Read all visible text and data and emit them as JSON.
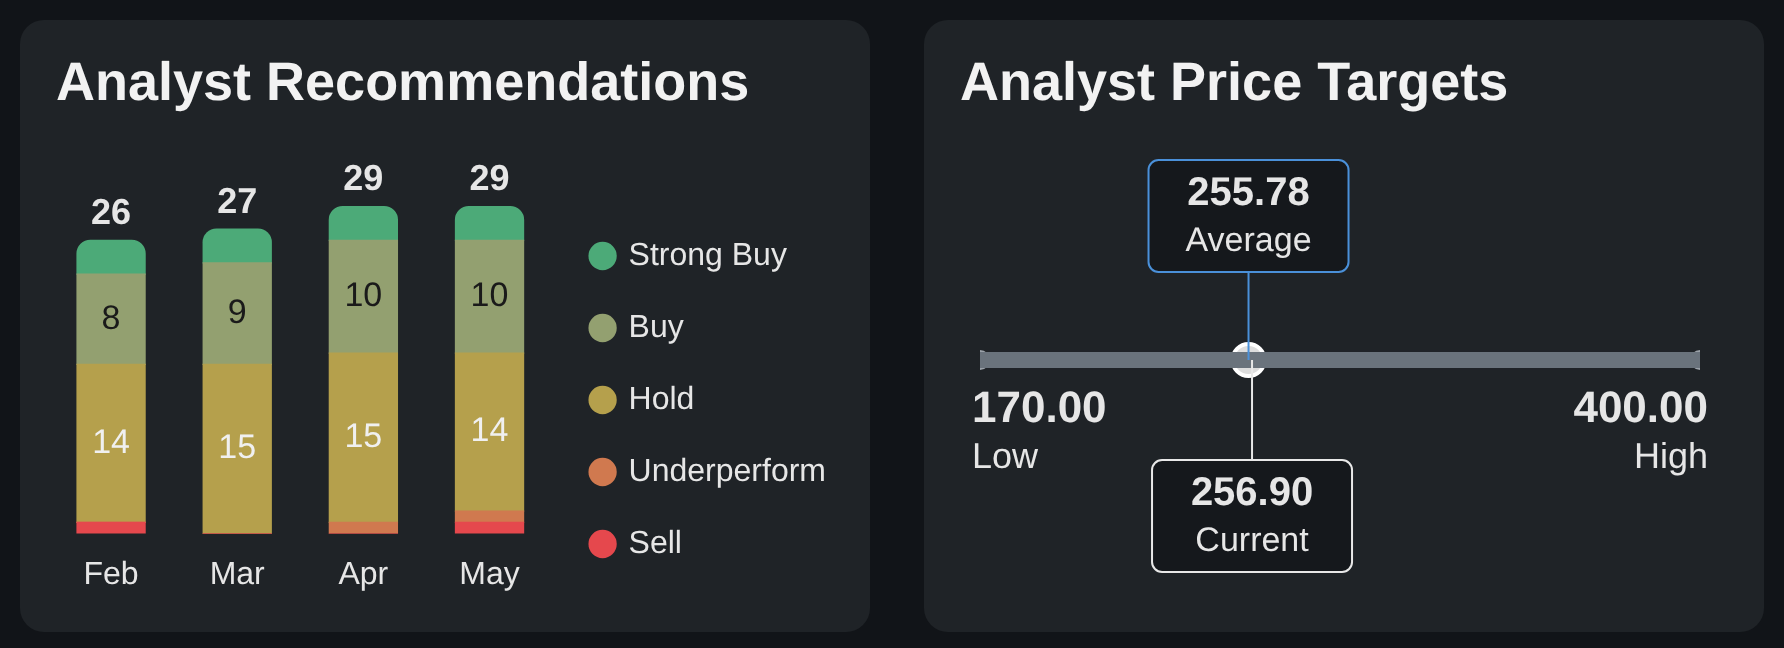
{
  "chart_data": [
    {
      "type": "bar",
      "title": "Analyst Recommendations",
      "categories": [
        "Feb",
        "Mar",
        "Apr",
        "May"
      ],
      "stacked": true,
      "legend": "right",
      "totals": [
        "26",
        "27",
        "29",
        "29"
      ],
      "series": [
        {
          "name": "Sell",
          "color": "#e5484d",
          "values": [
            1,
            0,
            0,
            1
          ],
          "value_labels": [
            null,
            null,
            null,
            null
          ]
        },
        {
          "name": "Underperform",
          "color": "#d0794f",
          "values": [
            0,
            0,
            1,
            1
          ],
          "value_labels": [
            null,
            null,
            null,
            null
          ]
        },
        {
          "name": "Hold",
          "color": "#b5a04c",
          "values": [
            14,
            15,
            15,
            14
          ],
          "value_labels": [
            "14",
            "15",
            "15",
            "14"
          ]
        },
        {
          "name": "Buy",
          "color": "#93a070",
          "values": [
            8,
            9,
            10,
            10
          ],
          "value_labels": [
            "8",
            "9",
            "10",
            "10"
          ]
        },
        {
          "name": "Strong Buy",
          "color": "#4caa78",
          "values": [
            3,
            3,
            3,
            3
          ],
          "value_labels": [
            null,
            null,
            null,
            null
          ]
        }
      ]
    },
    {
      "type": "other",
      "title": "Analyst Price Targets",
      "categories": [
        "Low",
        "Average",
        "Current",
        "High"
      ],
      "values": [
        170,
        255.78,
        256.9,
        400
      ],
      "value_labels": [
        "170.00",
        "255.78",
        "256.90",
        "400.00"
      ]
    }
  ]
}
